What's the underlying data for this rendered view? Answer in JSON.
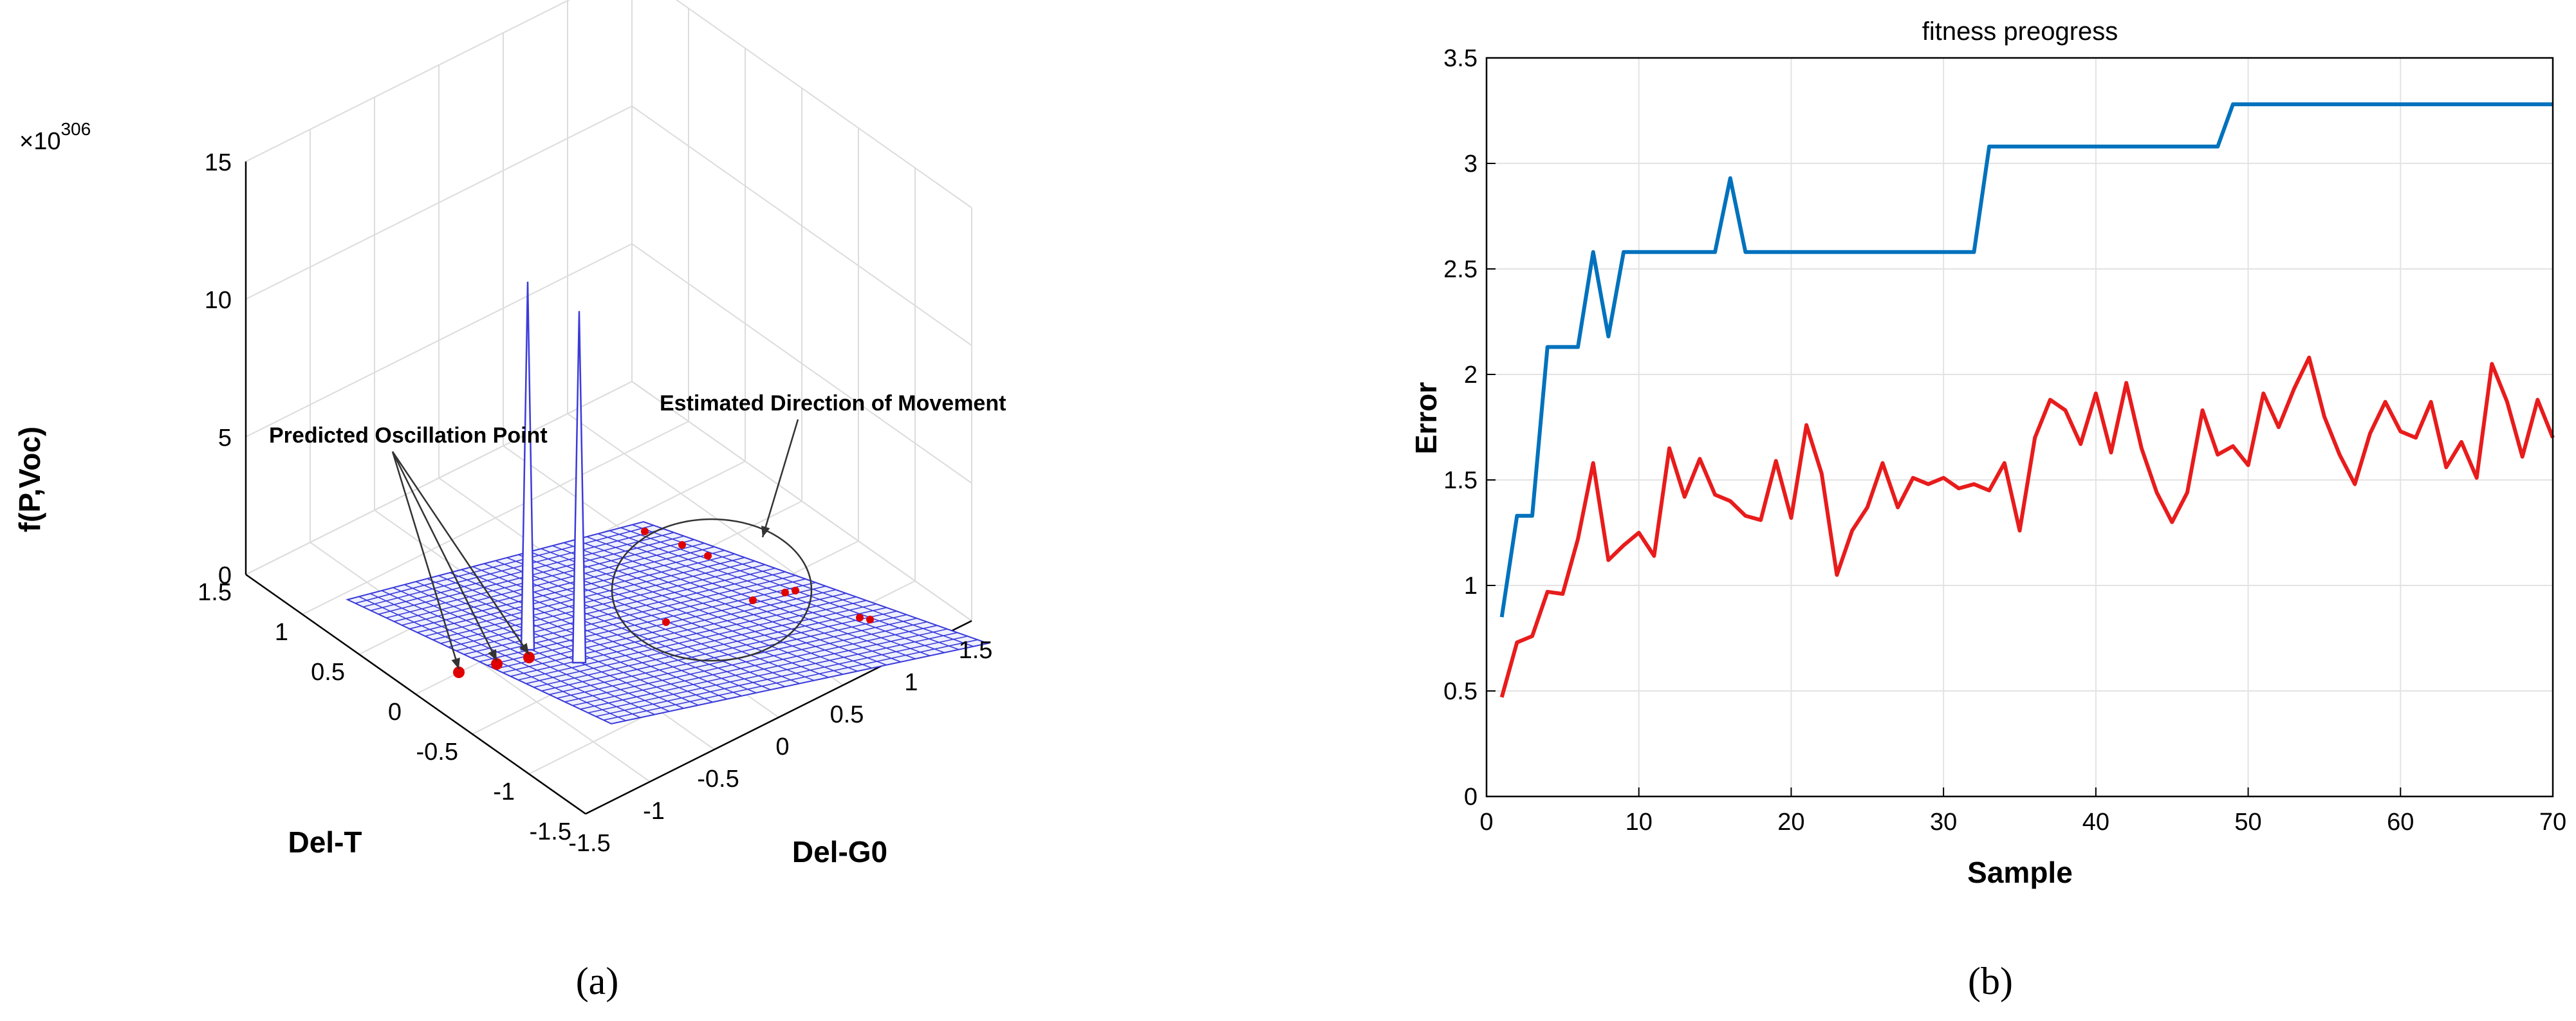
{
  "panel_labels": {
    "a": "(a)",
    "b": "(b)"
  },
  "chart_data": [
    {
      "type": "surface3d",
      "title": "",
      "zlabel": "f(P,Voc)",
      "xlabel": "Del-T",
      "ylabel": "Del-G0",
      "exponent_base": "×10",
      "exponent_power": "306",
      "x_ticks": [
        "1.5",
        "1",
        "0.5",
        "0",
        "-0.5",
        "-1",
        "-1.5"
      ],
      "y_ticks": [
        "-1.5",
        "-1",
        "-0.5",
        "0",
        "0.5",
        "1",
        "1.5"
      ],
      "z_ticks": [
        "15",
        "10",
        "5",
        "0"
      ],
      "zlim": [
        0,
        15
      ],
      "surface_color": "#3b3bd9",
      "marker_color": "#e00000",
      "annotations": {
        "predicted": "Predicted Oscillation Point",
        "estimated": "Estimated Direction of Movement"
      },
      "spikes_peak": [
        12.2,
        11.6
      ]
    },
    {
      "type": "line",
      "title": "fitness preogress",
      "xlabel": "Sample",
      "ylabel": "Error",
      "xlim": [
        0,
        70
      ],
      "ylim": [
        0,
        3.5
      ],
      "x_ticks": [
        0,
        10,
        20,
        30,
        40,
        50,
        60,
        70
      ],
      "y_ticks": [
        0,
        0.5,
        1,
        1.5,
        2,
        2.5,
        3,
        3.5
      ],
      "grid": true,
      "x": [
        1,
        2,
        3,
        4,
        5,
        6,
        7,
        8,
        9,
        10,
        11,
        12,
        13,
        14,
        15,
        16,
        17,
        18,
        19,
        20,
        21,
        22,
        23,
        24,
        25,
        26,
        27,
        28,
        29,
        30,
        31,
        32,
        33,
        34,
        35,
        36,
        37,
        38,
        39,
        40,
        41,
        42,
        43,
        44,
        45,
        46,
        47,
        48,
        49,
        50,
        51,
        52,
        53,
        54,
        55,
        56,
        57,
        58,
        59,
        60,
        61,
        62,
        63,
        64,
        65,
        66,
        67,
        68,
        69,
        70
      ],
      "series": [
        {
          "color": "#0072bd",
          "values": [
            0.85,
            1.33,
            1.33,
            2.13,
            2.13,
            2.13,
            2.58,
            2.18,
            2.58,
            2.58,
            2.58,
            2.58,
            2.58,
            2.58,
            2.58,
            2.93,
            2.58,
            2.58,
            2.58,
            2.58,
            2.58,
            2.58,
            2.58,
            2.58,
            2.58,
            2.58,
            2.58,
            2.58,
            2.58,
            2.58,
            2.58,
            2.58,
            3.08,
            3.08,
            3.08,
            3.08,
            3.08,
            3.08,
            3.08,
            3.08,
            3.08,
            3.08,
            3.08,
            3.08,
            3.08,
            3.08,
            3.08,
            3.08,
            3.28,
            3.28,
            3.28,
            3.28,
            3.28,
            3.28,
            3.28,
            3.28,
            3.28,
            3.28,
            3.28,
            3.28,
            3.28,
            3.28,
            3.28,
            3.28,
            3.28,
            3.28,
            3.28,
            3.28,
            3.28,
            3.28
          ]
        },
        {
          "color": "#e81c1c",
          "values": [
            0.47,
            0.73,
            0.76,
            0.97,
            0.96,
            1.22,
            1.58,
            1.12,
            1.19,
            1.25,
            1.14,
            1.65,
            1.42,
            1.6,
            1.43,
            1.4,
            1.33,
            1.31,
            1.59,
            1.32,
            1.76,
            1.53,
            1.05,
            1.26,
            1.37,
            1.58,
            1.37,
            1.51,
            1.48,
            1.51,
            1.46,
            1.48,
            1.45,
            1.58,
            1.26,
            1.7,
            1.88,
            1.83,
            1.67,
            1.91,
            1.63,
            1.96,
            1.65,
            1.44,
            1.3,
            1.44,
            1.83,
            1.62,
            1.66,
            1.57,
            1.91,
            1.75,
            1.93,
            2.08,
            1.8,
            1.62,
            1.48,
            1.72,
            1.87,
            1.73,
            1.7,
            1.87,
            1.56,
            1.68,
            1.51,
            2.05,
            1.87,
            1.61,
            1.88,
            1.7
          ]
        }
      ]
    }
  ]
}
